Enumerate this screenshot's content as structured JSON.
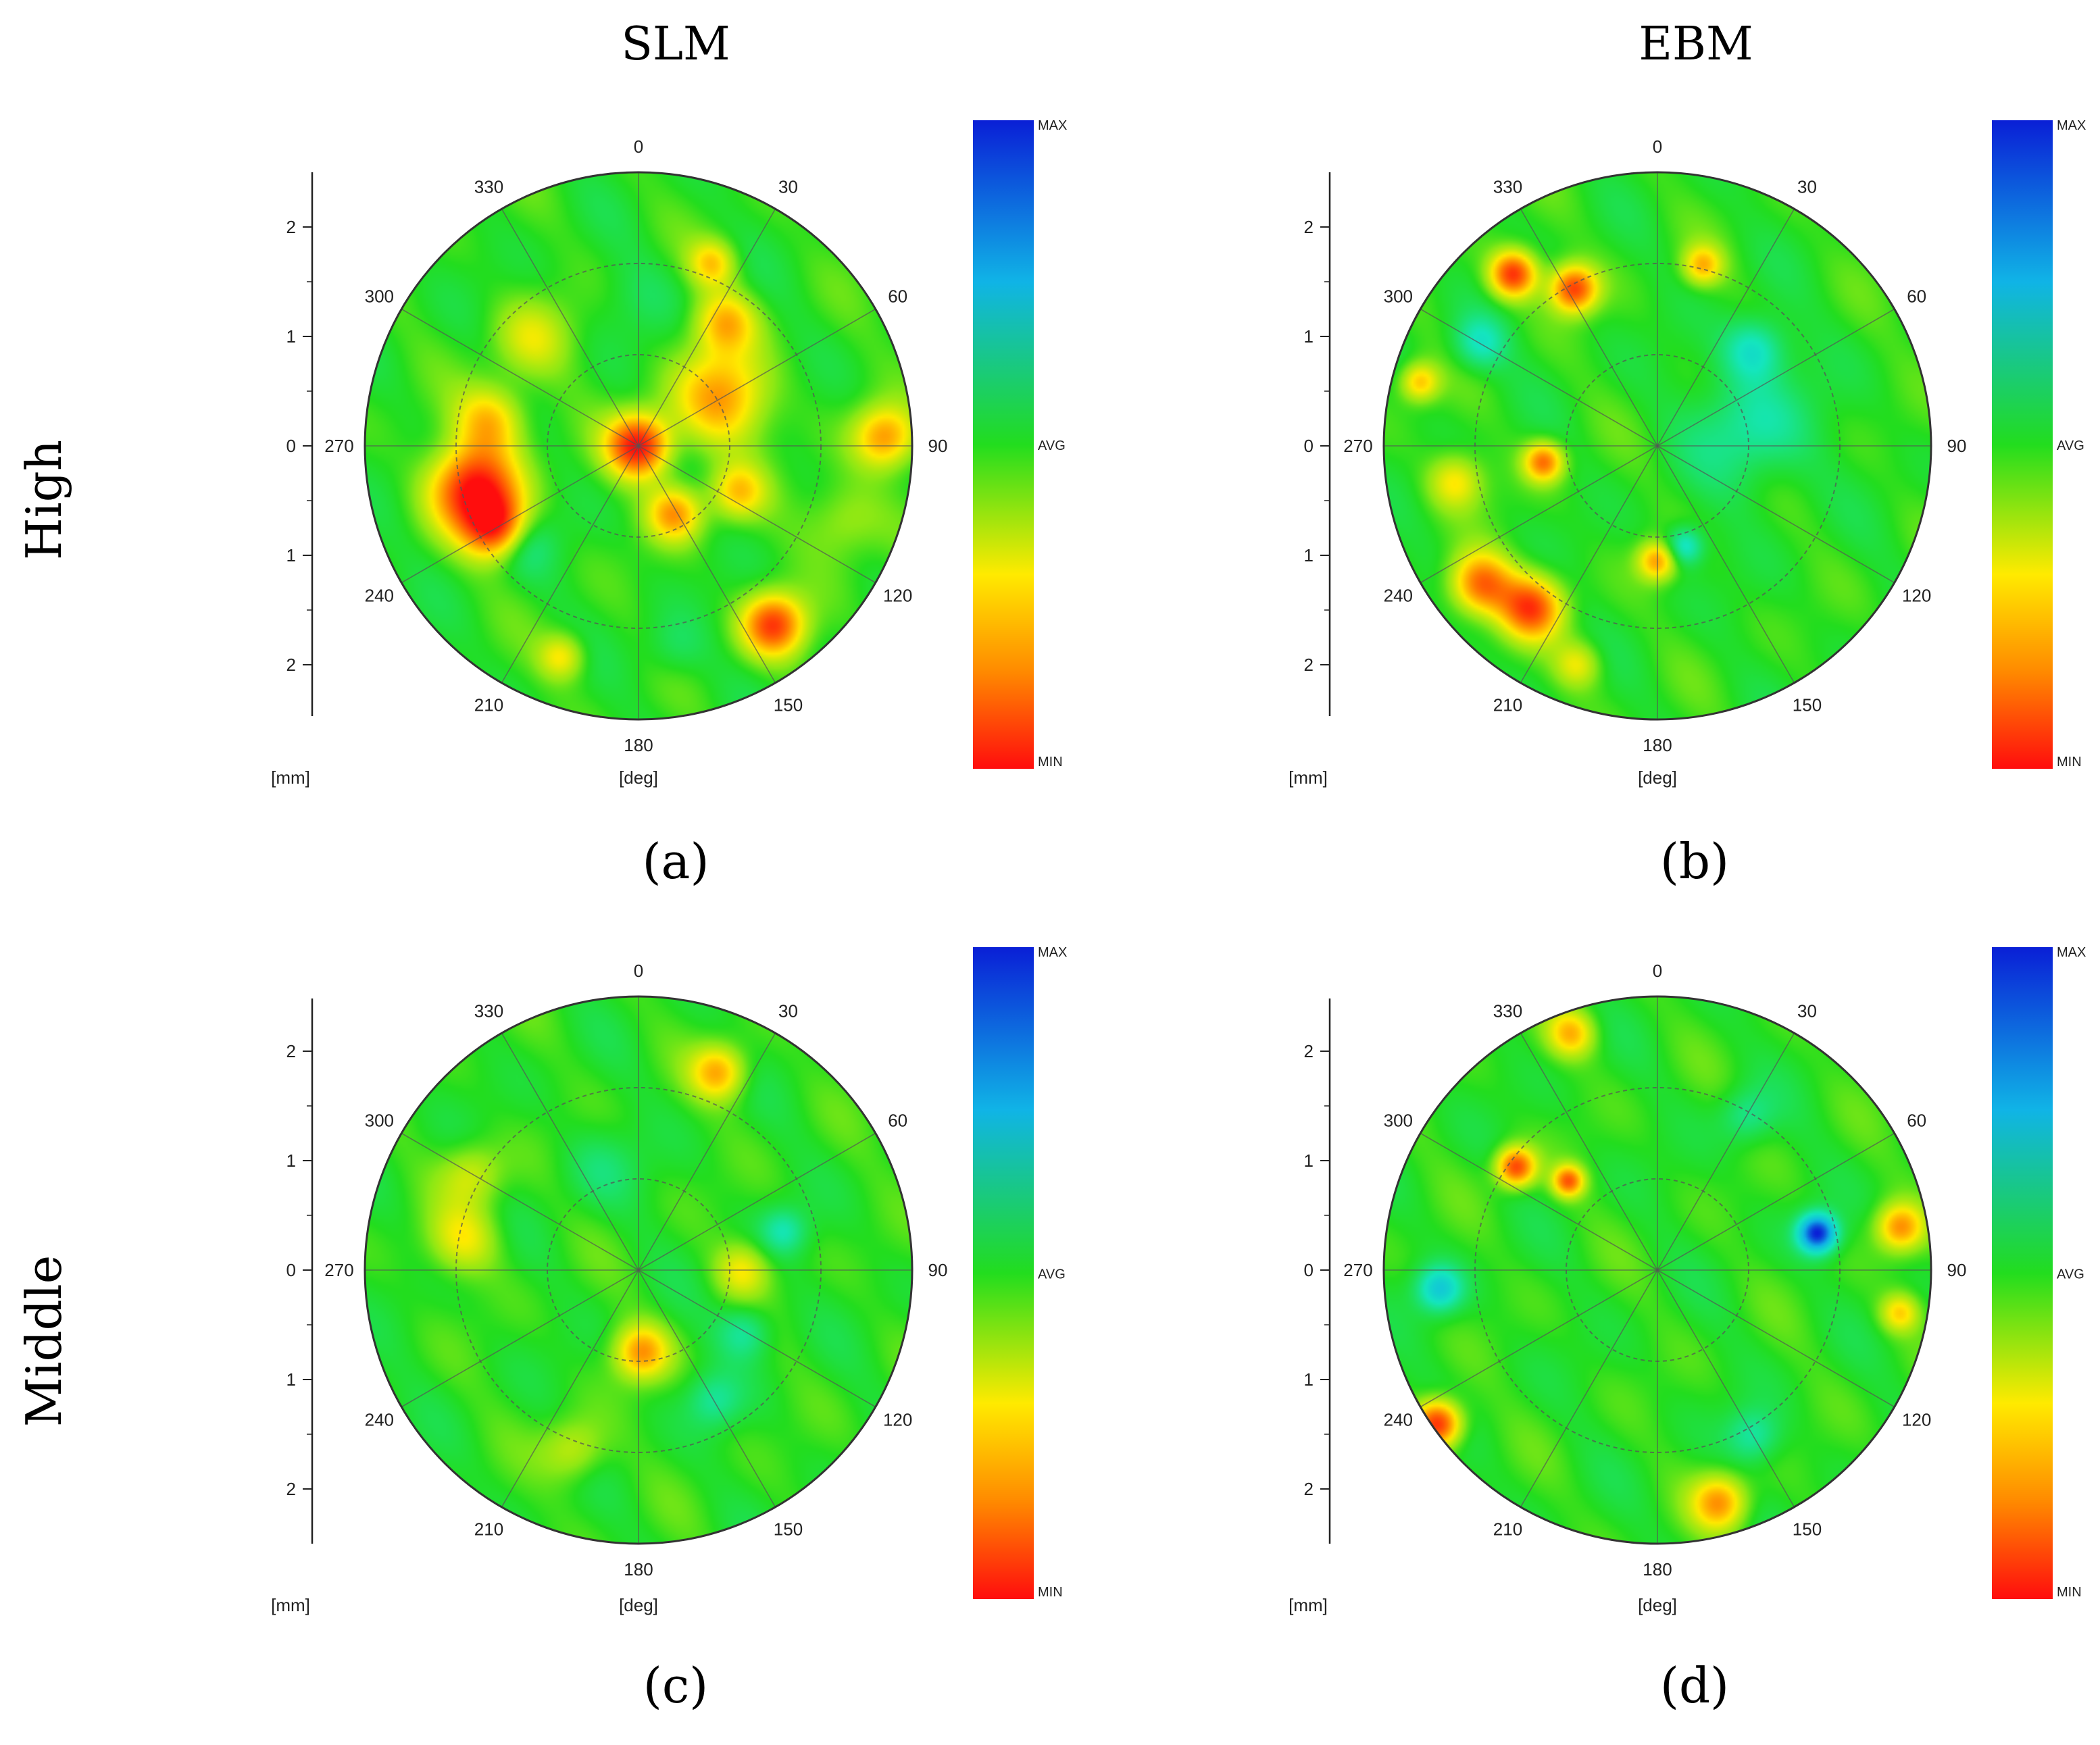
{
  "figure": {
    "column_titles": [
      "SLM",
      "EBM"
    ],
    "row_titles": [
      "High",
      "Middle"
    ]
  },
  "colors": {
    "max": "#0a1fd6",
    "avg": "#22dd1e",
    "min": "#ff0d0d",
    "grid_line": "#555555"
  },
  "chart_data": [
    {
      "type": "heatmap",
      "subtype": "polar-contour",
      "panel_label": "(a)",
      "column": "SLM",
      "row": "High",
      "angle_ticks": [
        "0",
        "30",
        "60",
        "90",
        "120",
        "150",
        "180",
        "210",
        "240",
        "270",
        "300",
        "330"
      ],
      "radial_ticks": [
        "2",
        "1",
        "0",
        "1",
        "2"
      ],
      "xlabel": "[deg]",
      "ylabel": "[mm]",
      "colorbar": {
        "labels": [
          "MAX",
          "AVG",
          "MIN"
        ]
      },
      "blobs": [
        {
          "angle": 65,
          "r": 0.0,
          "sigma": 0.08,
          "value": -1.0
        },
        {
          "angle": 60,
          "r": 0.35,
          "sigma": 0.12,
          "value": -0.6
        },
        {
          "angle": 35,
          "r": 0.55,
          "sigma": 0.08,
          "value": -0.5
        },
        {
          "angle": 255,
          "r": 0.62,
          "sigma": 0.11,
          "value": -1.0
        },
        {
          "angle": 280,
          "r": 0.55,
          "sigma": 0.09,
          "value": -0.5
        },
        {
          "angle": 88,
          "r": 0.9,
          "sigma": 0.08,
          "value": -0.6
        },
        {
          "angle": 240,
          "r": 0.6,
          "sigma": 0.08,
          "value": -0.8
        },
        {
          "angle": 143,
          "r": 0.82,
          "sigma": 0.08,
          "value": -0.85
        },
        {
          "angle": 152,
          "r": 0.28,
          "sigma": 0.07,
          "value": -0.6
        },
        {
          "angle": 115,
          "r": 0.4,
          "sigma": 0.07,
          "value": -0.45
        },
        {
          "angle": 22,
          "r": 0.72,
          "sigma": 0.06,
          "value": -0.45
        },
        {
          "angle": 200,
          "r": 0.82,
          "sigma": 0.06,
          "value": -0.4
        },
        {
          "angle": 230,
          "r": 0.55,
          "sigma": 0.08,
          "value": 0.25
        },
        {
          "angle": 170,
          "r": 0.75,
          "sigma": 0.08,
          "value": 0.15
        },
        {
          "angle": 110,
          "r": 0.8,
          "sigma": 0.1,
          "value": -0.25
        },
        {
          "angle": 315,
          "r": 0.55,
          "sigma": 0.1,
          "value": -0.3
        },
        {
          "angle": 0,
          "r": 0.55,
          "sigma": 0.1,
          "value": 0.1
        }
      ]
    },
    {
      "type": "heatmap",
      "subtype": "polar-contour",
      "panel_label": "(b)",
      "column": "EBM",
      "row": "High",
      "angle_ticks": [
        "0",
        "30",
        "60",
        "90",
        "120",
        "150",
        "180",
        "210",
        "240",
        "270",
        "300",
        "330"
      ],
      "radial_ticks": [
        "2",
        "1",
        "0",
        "1",
        "2"
      ],
      "xlabel": "[deg]",
      "ylabel": "[mm]",
      "colorbar": {
        "labels": [
          "MAX",
          "AVG",
          "MIN"
        ]
      },
      "blobs": [
        {
          "angle": 320,
          "r": 0.82,
          "sigma": 0.06,
          "value": -0.9
        },
        {
          "angle": 332,
          "r": 0.65,
          "sigma": 0.06,
          "value": -0.85
        },
        {
          "angle": 262,
          "r": 0.42,
          "sigma": 0.05,
          "value": -0.7
        },
        {
          "angle": 180,
          "r": 0.42,
          "sigma": 0.05,
          "value": -0.6
        },
        {
          "angle": 218,
          "r": 0.75,
          "sigma": 0.08,
          "value": -0.8
        },
        {
          "angle": 232,
          "r": 0.82,
          "sigma": 0.08,
          "value": -0.75
        },
        {
          "angle": 285,
          "r": 0.9,
          "sigma": 0.05,
          "value": -0.5
        },
        {
          "angle": 14,
          "r": 0.68,
          "sigma": 0.05,
          "value": -0.5
        },
        {
          "angle": 80,
          "r": 0.35,
          "sigma": 0.15,
          "value": 0.3
        },
        {
          "angle": 45,
          "r": 0.5,
          "sigma": 0.08,
          "value": 0.4
        },
        {
          "angle": 165,
          "r": 0.38,
          "sigma": 0.05,
          "value": 0.45
        },
        {
          "angle": 300,
          "r": 0.75,
          "sigma": 0.07,
          "value": 0.35
        },
        {
          "angle": 260,
          "r": 0.75,
          "sigma": 0.07,
          "value": -0.4
        },
        {
          "angle": 200,
          "r": 0.85,
          "sigma": 0.06,
          "value": -0.35
        }
      ]
    },
    {
      "type": "heatmap",
      "subtype": "polar-contour",
      "panel_label": "(c)",
      "column": "SLM",
      "row": "Middle",
      "angle_ticks": [
        "0",
        "30",
        "60",
        "90",
        "120",
        "150",
        "180",
        "210",
        "240",
        "270",
        "300",
        "330"
      ],
      "radial_ticks": [
        "2",
        "1",
        "0",
        "1",
        "2"
      ],
      "xlabel": "[deg]",
      "ylabel": "[mm]",
      "colorbar": {
        "labels": [
          "MAX",
          "AVG",
          "MIN"
        ]
      },
      "blobs": [
        {
          "angle": 178,
          "r": 0.3,
          "sigma": 0.07,
          "value": -0.6
        },
        {
          "angle": 22,
          "r": 0.78,
          "sigma": 0.07,
          "value": -0.55
        },
        {
          "angle": 280,
          "r": 0.65,
          "sigma": 0.09,
          "value": -0.35
        },
        {
          "angle": 90,
          "r": 0.38,
          "sigma": 0.07,
          "value": -0.35
        },
        {
          "angle": 300,
          "r": 0.7,
          "sigma": 0.08,
          "value": -0.3
        },
        {
          "angle": 200,
          "r": 0.7,
          "sigma": 0.08,
          "value": -0.3
        },
        {
          "angle": 120,
          "r": 0.45,
          "sigma": 0.07,
          "value": 0.3
        },
        {
          "angle": 75,
          "r": 0.55,
          "sigma": 0.06,
          "value": 0.3
        },
        {
          "angle": 150,
          "r": 0.55,
          "sigma": 0.07,
          "value": 0.25
        },
        {
          "angle": 340,
          "r": 0.4,
          "sigma": 0.1,
          "value": 0.15
        }
      ]
    },
    {
      "type": "heatmap",
      "subtype": "polar-contour",
      "panel_label": "(d)",
      "column": "EBM",
      "row": "Middle",
      "angle_ticks": [
        "0",
        "30",
        "60",
        "90",
        "120",
        "150",
        "180",
        "210",
        "240",
        "270",
        "300",
        "330"
      ],
      "radial_ticks": [
        "2",
        "1",
        "0",
        "1",
        "2"
      ],
      "xlabel": "[deg]",
      "ylabel": "[mm]",
      "colorbar": {
        "labels": [
          "MAX",
          "AVG",
          "MIN"
        ]
      },
      "blobs": [
        {
          "angle": 77,
          "r": 0.6,
          "sigma": 0.05,
          "value": 1.0
        },
        {
          "angle": 265,
          "r": 0.8,
          "sigma": 0.06,
          "value": 0.5
        },
        {
          "angle": 306,
          "r": 0.64,
          "sigma": 0.05,
          "value": -0.85
        },
        {
          "angle": 315,
          "r": 0.46,
          "sigma": 0.04,
          "value": -0.75
        },
        {
          "angle": 235,
          "r": 0.98,
          "sigma": 0.06,
          "value": -0.95
        },
        {
          "angle": 80,
          "r": 0.9,
          "sigma": 0.06,
          "value": -0.6
        },
        {
          "angle": 165,
          "r": 0.88,
          "sigma": 0.07,
          "value": -0.6
        },
        {
          "angle": 340,
          "r": 0.92,
          "sigma": 0.06,
          "value": -0.5
        },
        {
          "angle": 100,
          "r": 0.9,
          "sigma": 0.05,
          "value": -0.45
        },
        {
          "angle": 150,
          "r": 0.7,
          "sigma": 0.07,
          "value": 0.3
        },
        {
          "angle": 30,
          "r": 0.65,
          "sigma": 0.07,
          "value": 0.25
        }
      ]
    }
  ]
}
